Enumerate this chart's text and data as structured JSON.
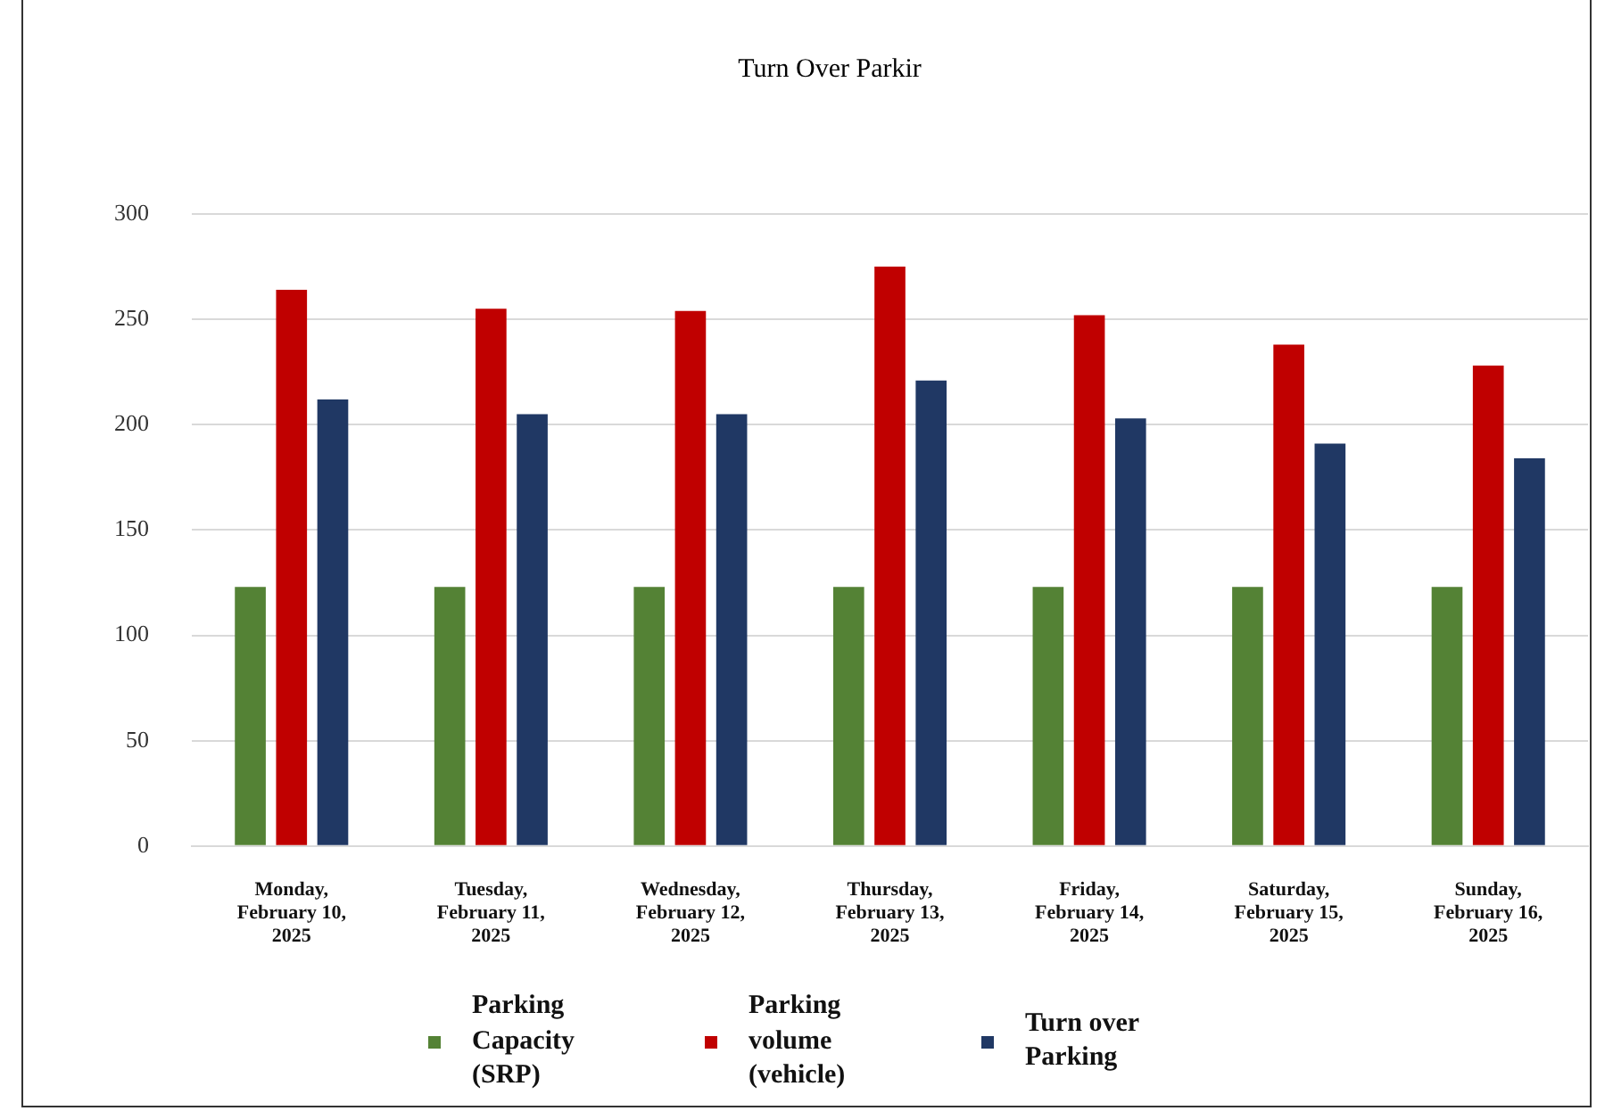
{
  "chart_data": {
    "type": "bar",
    "title": "Turn Over Parkir",
    "categories": [
      "Monday, February 10, 2025",
      "Tuesday, February 11, 2025",
      "Wednesday, February 12, 2025",
      "Thursday, February 13, 2025",
      "Friday, February 14, 2025",
      "Saturday, February 15, 2025",
      "Sunday, February 16, 2025"
    ],
    "series": [
      {
        "name": "Parking Capacity (SRP)",
        "color": "#548235",
        "values": [
          123,
          123,
          123,
          123,
          123,
          123,
          123
        ]
      },
      {
        "name": "Parking volume (vehicle)",
        "color": "#c00000",
        "values": [
          264,
          255,
          254,
          275,
          252,
          238,
          228
        ]
      },
      {
        "name": "Turn over Parking",
        "color": "#203864",
        "values": [
          212,
          205,
          205,
          221,
          203,
          191,
          184
        ]
      }
    ],
    "ylim": [
      0,
      300
    ],
    "yticks": [
      0,
      50,
      100,
      150,
      200,
      250,
      300
    ],
    "grid": "y",
    "legend": "bottom"
  }
}
